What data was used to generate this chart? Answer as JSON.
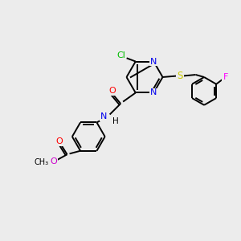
{
  "bg_color": "#ececec",
  "bond_color": "#000000",
  "atom_colors": {
    "Cl": "#00bb00",
    "N": "#0000ee",
    "O": "#ff0000",
    "O2": "#cc00cc",
    "S": "#cccc00",
    "F": "#ff00ff",
    "H": "#000000",
    "C": "#000000"
  },
  "figsize": [
    3.0,
    3.0
  ],
  "dpi": 100,
  "xlim": [
    0,
    10
  ],
  "ylim": [
    0,
    10
  ]
}
